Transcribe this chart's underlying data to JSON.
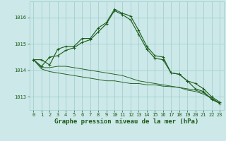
{
  "bg_color": "#cce8e8",
  "grid_color": "#99cccc",
  "line_color": "#1a5c1a",
  "xlabel": "Graphe pression niveau de la mer (hPa)",
  "xlim": [
    -0.5,
    23.5
  ],
  "ylim": [
    1012.5,
    1016.6
  ],
  "yticks": [
    1013,
    1014,
    1015,
    1016
  ],
  "xticks": [
    0,
    1,
    2,
    3,
    4,
    5,
    6,
    7,
    8,
    9,
    10,
    11,
    12,
    13,
    14,
    15,
    16,
    17,
    18,
    19,
    20,
    21,
    22,
    23
  ],
  "series": [
    [
      1014.4,
      1014.4,
      1014.2,
      1014.8,
      1014.9,
      1014.9,
      1015.2,
      1015.2,
      1015.6,
      1015.8,
      1016.3,
      1016.15,
      1016.05,
      1015.5,
      1014.9,
      1014.55,
      1014.5,
      1013.9,
      1013.85,
      1013.6,
      1013.3,
      1013.2,
      1012.9,
      1012.75
    ],
    [
      1014.4,
      1014.15,
      1014.5,
      1014.55,
      1014.75,
      1014.85,
      1015.05,
      1015.15,
      1015.45,
      1015.75,
      1016.25,
      1016.1,
      1015.9,
      1015.35,
      1014.8,
      1014.45,
      1014.4,
      1013.9,
      1013.85,
      1013.6,
      1013.5,
      1013.3,
      1013.0,
      1012.8
    ],
    [
      1014.4,
      1014.1,
      1014.1,
      1014.15,
      1014.15,
      1014.1,
      1014.05,
      1014.0,
      1013.95,
      1013.9,
      1013.85,
      1013.8,
      1013.7,
      1013.6,
      1013.55,
      1013.5,
      1013.45,
      1013.4,
      1013.35,
      1013.25,
      1013.2,
      1013.1,
      1012.95,
      1012.75
    ],
    [
      1014.4,
      1014.05,
      1013.95,
      1013.9,
      1013.85,
      1013.8,
      1013.75,
      1013.7,
      1013.65,
      1013.6,
      1013.6,
      1013.55,
      1013.5,
      1013.5,
      1013.45,
      1013.45,
      1013.4,
      1013.38,
      1013.35,
      1013.3,
      1013.25,
      1013.15,
      1012.95,
      1012.75
    ]
  ],
  "marker_series": [
    0,
    1
  ],
  "xlabel_fontsize": 6.5,
  "tick_fontsize": 5.0
}
